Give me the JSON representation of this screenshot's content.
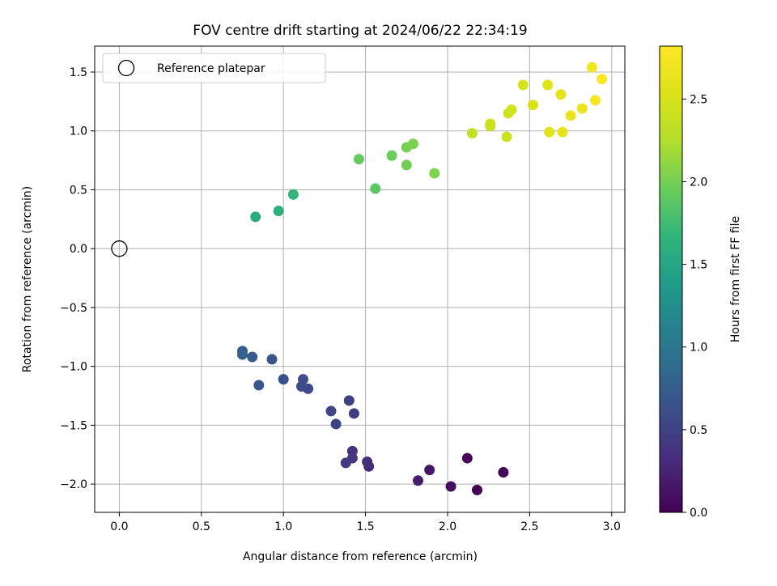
{
  "chart_data": {
    "type": "scatter",
    "title": "FOV centre drift starting at 2024/06/22 22:34:19",
    "xlabel": "Angular distance from reference (arcmin)",
    "ylabel": "Rotation from reference (arcmin)",
    "xlim": [
      -0.15,
      3.08
    ],
    "ylim": [
      -2.24,
      1.72
    ],
    "xticks": [
      0.0,
      0.5,
      1.0,
      1.5,
      2.0,
      2.5,
      3.0
    ],
    "xtick_labels": [
      "0.0",
      "0.5",
      "1.0",
      "1.5",
      "2.0",
      "2.5",
      "3.0"
    ],
    "yticks": [
      -2.0,
      -1.5,
      -1.0,
      -0.5,
      0.0,
      0.5,
      1.0,
      1.5
    ],
    "ytick_labels": [
      "−2.0",
      "−1.5",
      "−1.0",
      "−0.5",
      "0.0",
      "0.5",
      "1.0",
      "1.5"
    ],
    "grid": true,
    "legend": {
      "placement": "top-left",
      "entries": [
        {
          "label": "Reference platepar",
          "marker": "open-circle",
          "color": "#000000"
        }
      ]
    },
    "reference_point": {
      "x": 0.0,
      "y": 0.0
    },
    "colorbar": {
      "label": "Hours from first FF file",
      "colormap": "viridis",
      "range": [
        0.0,
        2.82
      ],
      "ticks": [
        0.0,
        0.5,
        1.0,
        1.5,
        2.0,
        2.5
      ],
      "tick_labels": [
        "0.0",
        "0.5",
        "1.0",
        "1.5",
        "2.0",
        "2.5"
      ]
    },
    "points": [
      {
        "x": 2.18,
        "y": -2.05,
        "c": 0.0
      },
      {
        "x": 2.34,
        "y": -1.9,
        "c": 0.02
      },
      {
        "x": 2.12,
        "y": -1.78,
        "c": 0.05
      },
      {
        "x": 2.02,
        "y": -2.02,
        "c": 0.1
      },
      {
        "x": 1.89,
        "y": -1.88,
        "c": 0.15
      },
      {
        "x": 1.82,
        "y": -1.97,
        "c": 0.2
      },
      {
        "x": 1.52,
        "y": -1.85,
        "c": 0.3
      },
      {
        "x": 1.51,
        "y": -1.81,
        "c": 0.33
      },
      {
        "x": 1.42,
        "y": -1.72,
        "c": 0.38
      },
      {
        "x": 1.42,
        "y": -1.78,
        "c": 0.4
      },
      {
        "x": 1.38,
        "y": -1.82,
        "c": 0.42
      },
      {
        "x": 1.43,
        "y": -1.4,
        "c": 0.45
      },
      {
        "x": 1.4,
        "y": -1.29,
        "c": 0.48
      },
      {
        "x": 1.32,
        "y": -1.49,
        "c": 0.5
      },
      {
        "x": 1.29,
        "y": -1.38,
        "c": 0.53
      },
      {
        "x": 1.15,
        "y": -1.19,
        "c": 0.56
      },
      {
        "x": 1.11,
        "y": -1.17,
        "c": 0.58
      },
      {
        "x": 1.12,
        "y": -1.11,
        "c": 0.6
      },
      {
        "x": 1.0,
        "y": -1.11,
        "c": 0.63
      },
      {
        "x": 0.93,
        "y": -0.94,
        "c": 0.66
      },
      {
        "x": 0.85,
        "y": -1.16,
        "c": 0.7
      },
      {
        "x": 0.81,
        "y": -0.92,
        "c": 0.73
      },
      {
        "x": 0.75,
        "y": -0.87,
        "c": 0.76
      },
      {
        "x": 0.75,
        "y": -0.9,
        "c": 0.78
      },
      {
        "x": 0.83,
        "y": 0.27,
        "c": 1.55
      },
      {
        "x": 0.97,
        "y": 0.32,
        "c": 1.6
      },
      {
        "x": 1.06,
        "y": 0.46,
        "c": 1.66
      },
      {
        "x": 1.56,
        "y": 0.51,
        "c": 1.88
      },
      {
        "x": 1.46,
        "y": 0.76,
        "c": 1.92
      },
      {
        "x": 1.66,
        "y": 0.79,
        "c": 1.95
      },
      {
        "x": 1.75,
        "y": 0.71,
        "c": 1.98
      },
      {
        "x": 1.75,
        "y": 0.86,
        "c": 2.0
      },
      {
        "x": 1.79,
        "y": 0.89,
        "c": 2.02
      },
      {
        "x": 1.92,
        "y": 0.64,
        "c": 2.05
      },
      {
        "x": 2.15,
        "y": 0.98,
        "c": 2.35
      },
      {
        "x": 2.26,
        "y": 1.04,
        "c": 2.38
      },
      {
        "x": 2.26,
        "y": 1.06,
        "c": 2.4
      },
      {
        "x": 2.36,
        "y": 0.95,
        "c": 2.42
      },
      {
        "x": 2.37,
        "y": 1.15,
        "c": 2.44
      },
      {
        "x": 2.39,
        "y": 1.18,
        "c": 2.46
      },
      {
        "x": 2.46,
        "y": 1.39,
        "c": 2.48
      },
      {
        "x": 2.52,
        "y": 1.22,
        "c": 2.5
      },
      {
        "x": 2.61,
        "y": 1.39,
        "c": 2.56
      },
      {
        "x": 2.62,
        "y": 0.99,
        "c": 2.58
      },
      {
        "x": 2.69,
        "y": 1.31,
        "c": 2.6
      },
      {
        "x": 2.7,
        "y": 0.99,
        "c": 2.62
      },
      {
        "x": 2.75,
        "y": 1.13,
        "c": 2.64
      },
      {
        "x": 2.82,
        "y": 1.19,
        "c": 2.68
      },
      {
        "x": 2.88,
        "y": 1.54,
        "c": 2.72
      },
      {
        "x": 2.9,
        "y": 1.26,
        "c": 2.74
      },
      {
        "x": 2.94,
        "y": 1.44,
        "c": 2.8
      }
    ]
  }
}
